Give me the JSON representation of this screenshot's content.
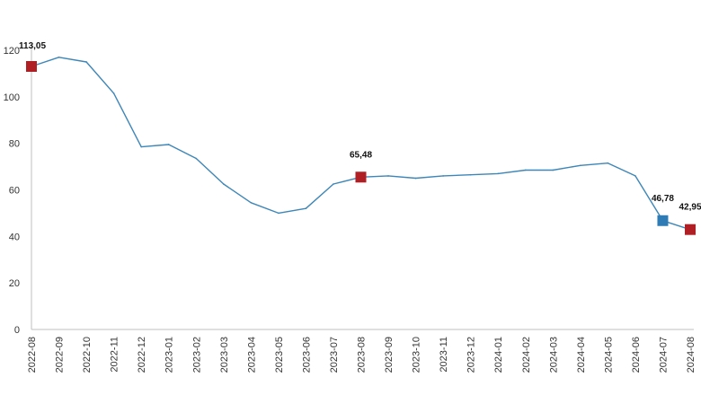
{
  "chart_data": {
    "type": "line",
    "title": "",
    "xlabel": "",
    "ylabel": "",
    "ylim": [
      0,
      120
    ],
    "y_ticks": [
      0,
      20,
      40,
      60,
      80,
      100,
      120
    ],
    "grid": false,
    "legend": "none",
    "categories": [
      "2022-08",
      "2022-09",
      "2022-10",
      "2022-11",
      "2022-12",
      "2023-01",
      "2023-02",
      "2023-03",
      "2023-04",
      "2023-05",
      "2023-06",
      "2023-07",
      "2023-08",
      "2023-09",
      "2023-10",
      "2023-11",
      "2023-12",
      "2024-01",
      "2024-02",
      "2024-03",
      "2024-04",
      "2024-05",
      "2024-06",
      "2024-07",
      "2024-08"
    ],
    "series": [
      {
        "values": [
          113.05,
          117.0,
          115.0,
          101.5,
          78.5,
          79.5,
          73.5,
          62.5,
          54.5,
          50.0,
          52.0,
          62.5,
          65.48,
          66.0,
          65.0,
          66.0,
          66.5,
          67.0,
          68.5,
          68.5,
          70.5,
          71.5,
          66.0,
          46.78,
          42.95
        ],
        "color": "#3d86b8"
      }
    ],
    "highlighted_points": [
      {
        "category": "2022-08",
        "value": 113.05,
        "label": "113,05",
        "color": "#b01f24"
      },
      {
        "category": "2023-08",
        "value": 65.48,
        "label": "65,48",
        "color": "#b01f24"
      },
      {
        "category": "2024-07",
        "value": 46.78,
        "label": "46,78",
        "color": "#2e7bb5"
      },
      {
        "category": "2024-08",
        "value": 42.95,
        "label": "42,95",
        "color": "#b01f24"
      }
    ],
    "axis_color": "#bfbfbf"
  }
}
